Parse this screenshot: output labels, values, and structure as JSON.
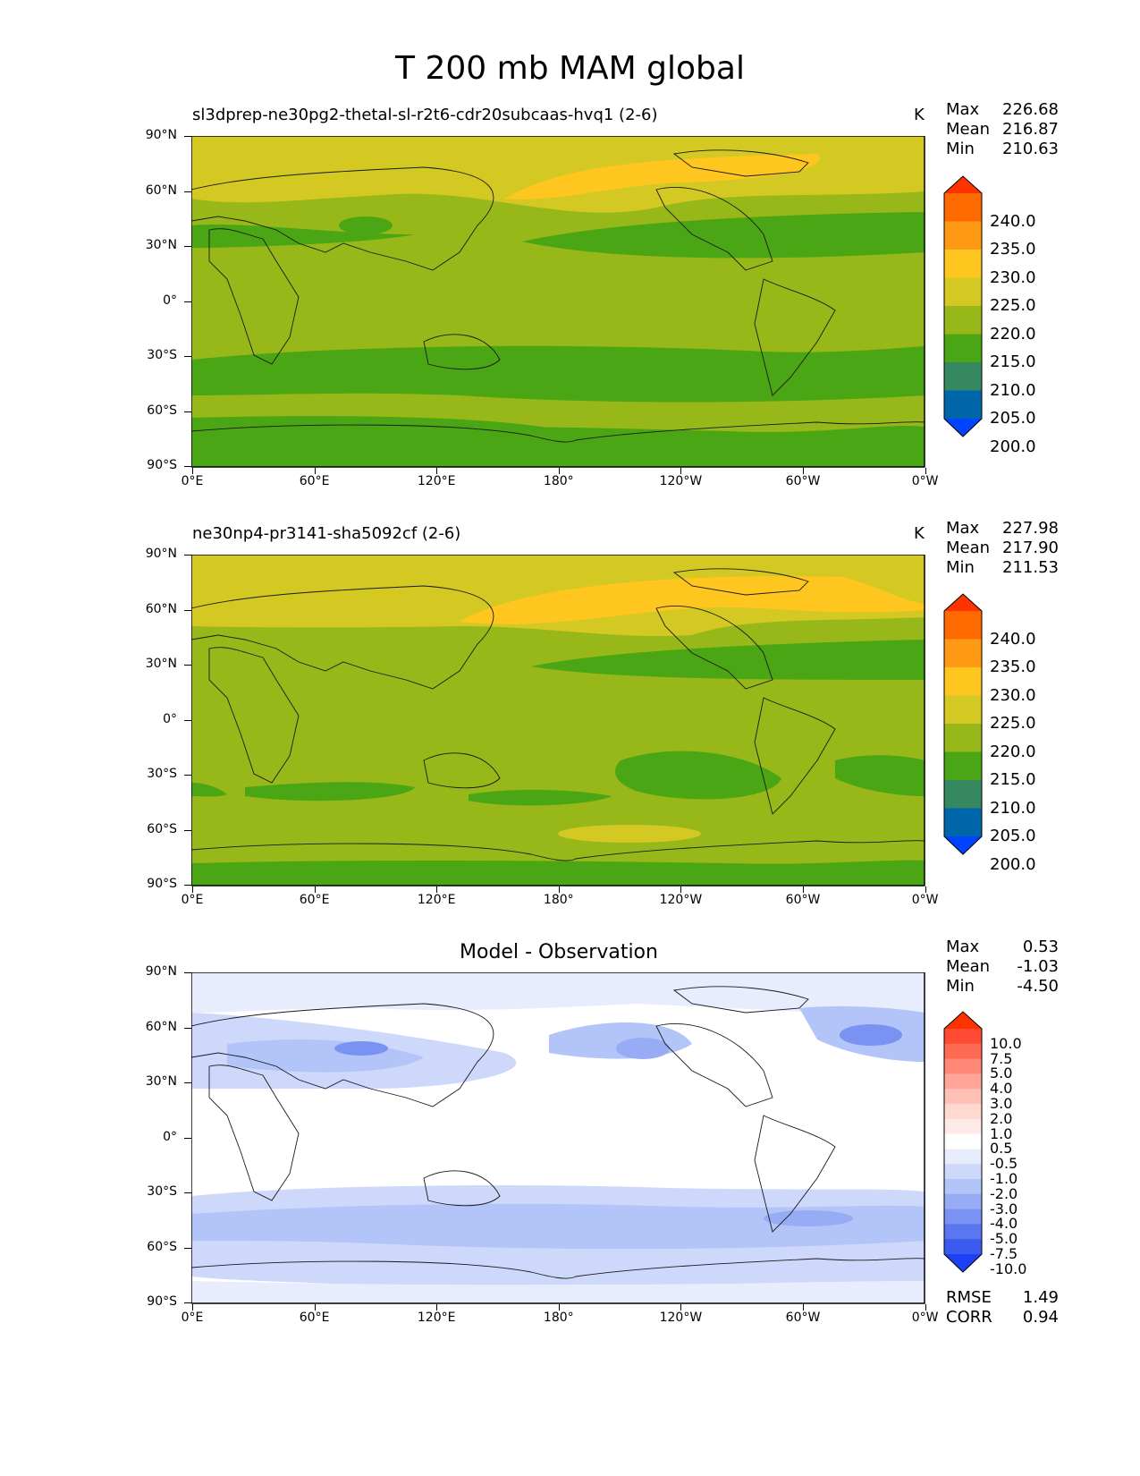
{
  "title": "T 200 mb MAM global",
  "yticks": [
    "90°N",
    "60°N",
    "30°N",
    "0°",
    "30°S",
    "60°S",
    "90°S"
  ],
  "xticks": [
    "0°E",
    "60°E",
    "120°E",
    "180°",
    "120°W",
    "60°W",
    "0°W"
  ],
  "chart_data": [
    {
      "type": "heatmap",
      "title": "sl3dprep-ne30pg2-thetal-sl-r2t6-cdr20subcaas-hvq1 (2-6)",
      "units": "K",
      "stats": {
        "Max": "226.68",
        "Mean": "216.87",
        "Min": "210.63"
      },
      "colorbar": {
        "levels": [
          "240.0",
          "235.0",
          "230.0",
          "225.0",
          "220.0",
          "215.0",
          "210.0",
          "205.0",
          "200.0"
        ],
        "colors": [
          "#ff3300",
          "#ff6a00",
          "#ff9a14",
          "#ffc61f",
          "#d4c922",
          "#97b818",
          "#4aa614",
          "#358860",
          "#0066aa",
          "#0044ff"
        ]
      }
    },
    {
      "type": "heatmap",
      "title": "ne30np4-pr3141-sha5092cf (2-6)",
      "units": "K",
      "stats": {
        "Max": "227.98",
        "Mean": "217.90",
        "Min": "211.53"
      },
      "colorbar": {
        "levels": [
          "240.0",
          "235.0",
          "230.0",
          "225.0",
          "220.0",
          "215.0",
          "210.0",
          "205.0",
          "200.0"
        ],
        "colors": [
          "#ff3300",
          "#ff6a00",
          "#ff9a14",
          "#ffc61f",
          "#d4c922",
          "#97b818",
          "#4aa614",
          "#358860",
          "#0066aa",
          "#0044ff"
        ]
      }
    },
    {
      "type": "heatmap",
      "title": "Model - Observation",
      "units": "",
      "stats": {
        "Max": "0.53",
        "Mean": "-1.03",
        "Min": "-4.50"
      },
      "metrics": {
        "RMSE": "1.49",
        "CORR": "0.94"
      },
      "colorbar": {
        "levels": [
          "10.0",
          "7.5",
          "5.0",
          "4.0",
          "3.0",
          "2.0",
          "1.0",
          "0.5",
          "-0.5",
          "-1.0",
          "-2.0",
          "-3.0",
          "-4.0",
          "-5.0",
          "-7.5",
          "-10.0"
        ],
        "colors": [
          "#ff3300",
          "#ff4b33",
          "#ff6a55",
          "#ff8877",
          "#ffa699",
          "#ffc0b5",
          "#ffd8d0",
          "#fde9e5",
          "#ffffff",
          "#e8edfd",
          "#cdd8fb",
          "#b3c4f8",
          "#97acf5",
          "#7a92f2",
          "#5a76f0",
          "#3b5bf0",
          "#1d40f5"
        ]
      }
    }
  ],
  "colors": {
    "panel1_bg": "#97b818",
    "diff_bg": "#ffffff"
  }
}
